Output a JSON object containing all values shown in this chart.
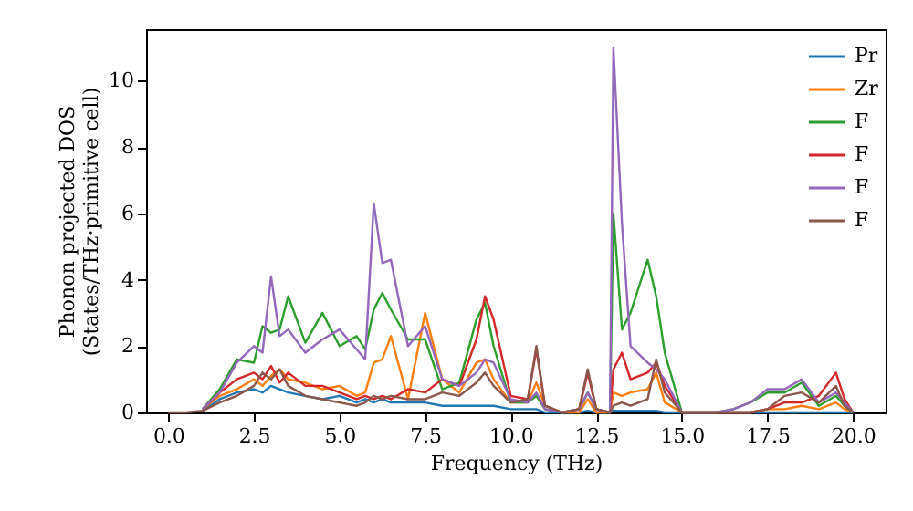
{
  "chart_data": {
    "type": "line",
    "xlabel": "Frequency (THz)",
    "ylabel": "Phonon projected DOS\n(States/THz·primitive cell)",
    "x": [
      0,
      0.5,
      1,
      1.5,
      2,
      2.5,
      2.75,
      3,
      3.25,
      3.5,
      4,
      4.5,
      5,
      5.5,
      5.75,
      6,
      6.25,
      6.5,
      7,
      7.5,
      8,
      8.5,
      9,
      9.25,
      9.5,
      10,
      10.5,
      10.75,
      11,
      11.5,
      12,
      12.25,
      12.5,
      12.9,
      13,
      13.25,
      13.5,
      14,
      14.25,
      14.5,
      15,
      15.5,
      16,
      16.5,
      17,
      17.5,
      18,
      18.5,
      19,
      19.5,
      19.75,
      20
    ],
    "series": [
      {
        "name": "Pr",
        "color": "#1f77b4",
        "values": [
          null,
          null,
          0.05,
          0.4,
          0.6,
          0.7,
          0.6,
          0.8,
          0.7,
          0.6,
          0.5,
          0.4,
          0.5,
          0.3,
          0.4,
          0.3,
          0.4,
          0.3,
          0.3,
          0.3,
          0.2,
          0.2,
          0.2,
          0.2,
          0.2,
          0.1,
          0.1,
          0.1,
          0,
          0,
          0,
          0.05,
          0,
          0,
          0.05,
          0.05,
          0.05,
          0.05,
          0.05,
          0,
          0,
          0,
          0,
          0,
          0,
          0,
          0,
          0,
          0,
          0,
          0,
          0
        ]
      },
      {
        "name": "Zr",
        "color": "#ff7f0e",
        "values": [
          null,
          null,
          0.1,
          0.5,
          0.7,
          1.0,
          0.8,
          1.1,
          1.3,
          1.0,
          0.9,
          0.7,
          0.8,
          0.5,
          0.6,
          1.5,
          1.6,
          2.3,
          0.4,
          3.0,
          1.0,
          0.6,
          1.5,
          1.6,
          1.0,
          0.3,
          0.3,
          0.9,
          0.2,
          0,
          0,
          0.4,
          0,
          0,
          0.6,
          0.5,
          0.6,
          0.7,
          1.2,
          0.3,
          0,
          0,
          0,
          0,
          0,
          0.1,
          0.1,
          0.2,
          0.1,
          0.3,
          0.1,
          0
        ]
      },
      {
        "name": "F",
        "color": "#2ca02c",
        "values": [
          null,
          null,
          0.1,
          0.7,
          1.6,
          1.5,
          2.6,
          2.4,
          2.5,
          3.5,
          2.1,
          3.0,
          2.0,
          2.3,
          1.9,
          3.1,
          3.6,
          3.1,
          2.2,
          2.2,
          0.7,
          0.9,
          2.8,
          3.3,
          2.0,
          0.3,
          0.3,
          0.5,
          0.1,
          0,
          0.1,
          0.6,
          0.1,
          0,
          6.0,
          2.5,
          3.0,
          4.6,
          3.5,
          1.8,
          0,
          0,
          0,
          0.1,
          0.3,
          0.6,
          0.6,
          0.9,
          0.2,
          0.5,
          0.2,
          0
        ]
      },
      {
        "name": "F",
        "color": "#d62728",
        "values": [
          null,
          null,
          0.1,
          0.6,
          1.0,
          1.2,
          1.0,
          1.4,
          0.9,
          1.2,
          0.8,
          0.8,
          0.6,
          0.4,
          0.5,
          0.4,
          0.5,
          0.4,
          0.7,
          0.6,
          1.0,
          0.8,
          2.2,
          3.5,
          2.8,
          0.5,
          0.4,
          1.9,
          0.2,
          0,
          0.1,
          1.2,
          0.1,
          0,
          1.3,
          1.8,
          1.0,
          1.2,
          1.5,
          0.8,
          0,
          0,
          0,
          0,
          0,
          0.1,
          0.3,
          0.3,
          0.5,
          1.2,
          0.4,
          0
        ]
      },
      {
        "name": "F",
        "color": "#9467bd",
        "values": [
          null,
          null,
          0.1,
          0.6,
          1.5,
          2.0,
          1.8,
          4.1,
          2.3,
          2.5,
          1.8,
          2.2,
          2.5,
          1.9,
          1.6,
          6.3,
          4.5,
          4.6,
          2.0,
          2.6,
          1.0,
          0.8,
          1.2,
          1.6,
          1.5,
          0.4,
          0.3,
          0.6,
          0.1,
          0,
          0.1,
          0.6,
          0.1,
          0,
          11.0,
          5.7,
          2.0,
          1.5,
          1.3,
          1.0,
          0,
          0,
          0,
          0.1,
          0.3,
          0.7,
          0.7,
          1.0,
          0.3,
          0.6,
          0.3,
          0
        ]
      },
      {
        "name": "F",
        "color": "#8c564b",
        "values": [
          0,
          0,
          0.05,
          0.3,
          0.5,
          0.8,
          1.2,
          1.0,
          1.3,
          0.8,
          0.5,
          0.4,
          0.3,
          0.2,
          0.3,
          0.5,
          0.4,
          0.5,
          0.4,
          0.4,
          0.6,
          0.5,
          0.9,
          1.2,
          0.8,
          0.3,
          0.4,
          2.0,
          0.2,
          0,
          0.1,
          1.3,
          0.1,
          0,
          0.2,
          0.3,
          0.2,
          0.4,
          1.6,
          0.6,
          0,
          0,
          0,
          0,
          0,
          0.1,
          0.5,
          0.6,
          0.3,
          0.8,
          0.2,
          0
        ]
      }
    ],
    "xlim": [
      -0.65,
      20.95
    ],
    "ylim": [
      0,
      11.55
    ],
    "xticks": [
      {
        "value": 0,
        "label": "0.0"
      },
      {
        "value": 2.5,
        "label": "2.5"
      },
      {
        "value": 5,
        "label": "5.0"
      },
      {
        "value": 7.5,
        "label": "7.5"
      },
      {
        "value": 10,
        "label": "10.0"
      },
      {
        "value": 12.5,
        "label": "12.5"
      },
      {
        "value": 15,
        "label": "15.0"
      },
      {
        "value": 17.5,
        "label": "17.5"
      },
      {
        "value": 20,
        "label": "20.0"
      }
    ],
    "yticks": [
      0,
      2,
      4,
      6,
      8,
      10
    ],
    "legend": "top right",
    "grid": false
  }
}
